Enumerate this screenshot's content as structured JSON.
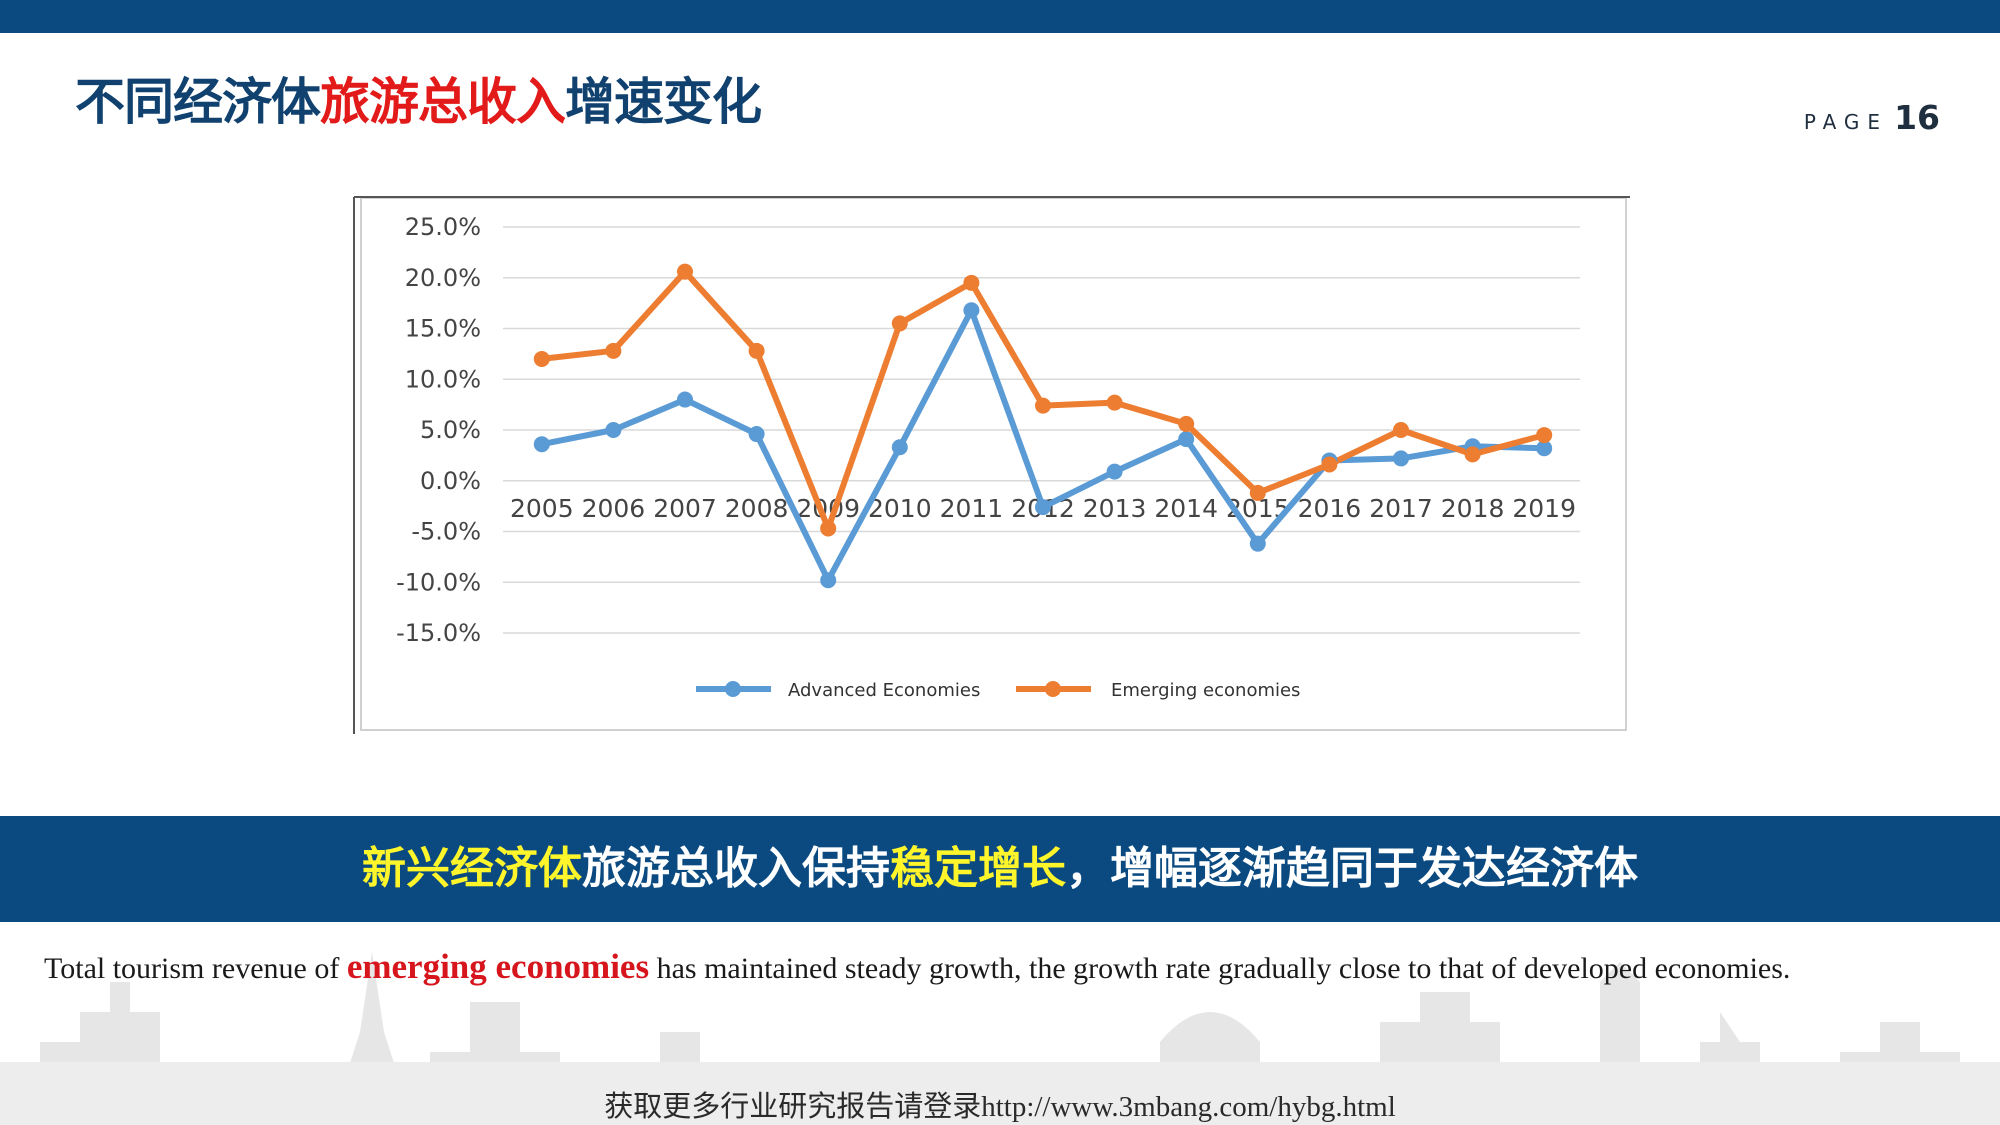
{
  "header": {
    "title_prefix": "不同经济体",
    "title_highlight": "旅游总收入",
    "title_suffix": "增速变化",
    "page_word": "PAGE",
    "page_number": "16"
  },
  "colors": {
    "top_bar": "#0b4a80",
    "title_blue": "#10416f",
    "title_red": "#e21a1a",
    "banner": "#0a4a80",
    "banner_highlight": "#fff52b",
    "advanced_series": "#5b9bd5",
    "emerging_series": "#ed7d31",
    "english_emphasis": "#d6161c"
  },
  "chart_data": {
    "type": "line",
    "x": [
      "2005",
      "2006",
      "2007",
      "2008",
      "2009",
      "2010",
      "2011",
      "2012",
      "2013",
      "2014",
      "2015",
      "2016",
      "2017",
      "2018",
      "2019"
    ],
    "series": [
      {
        "name": "Advanced Economies",
        "values": [
          3.6,
          5.0,
          8.0,
          4.6,
          -9.8,
          3.3,
          16.8,
          -2.6,
          0.9,
          4.1,
          -6.2,
          2.0,
          2.2,
          3.4,
          3.2
        ]
      },
      {
        "name": "Emerging economies",
        "values": [
          12.0,
          12.8,
          20.6,
          12.8,
          -4.7,
          15.5,
          19.5,
          7.4,
          7.7,
          5.6,
          -1.2,
          1.6,
          5.0,
          2.6,
          4.5
        ]
      }
    ],
    "y_ticks": [
      "25.0%",
      "20.0%",
      "15.0%",
      "10.0%",
      "5.0%",
      "0.0%",
      "-5.0%",
      "-10.0%",
      "-15.0%"
    ],
    "ylim": [
      -15,
      25
    ],
    "grid": true,
    "legend_position": "bottom",
    "xlabel": "",
    "ylabel": ""
  },
  "banner": {
    "part1": "新兴经济体",
    "part2": "旅游总收入保持",
    "part3": "稳定增长",
    "part4": "，增幅逐渐趋同于发达经济体"
  },
  "english": {
    "before": "Total tourism revenue of ",
    "emphasis": "emerging economies",
    "after": " has maintained steady growth, the growth rate gradually close to that of developed economies."
  },
  "footer": {
    "text": "获取更多行业研究报告请登录http://www.3mbang.com/hybg.html"
  }
}
